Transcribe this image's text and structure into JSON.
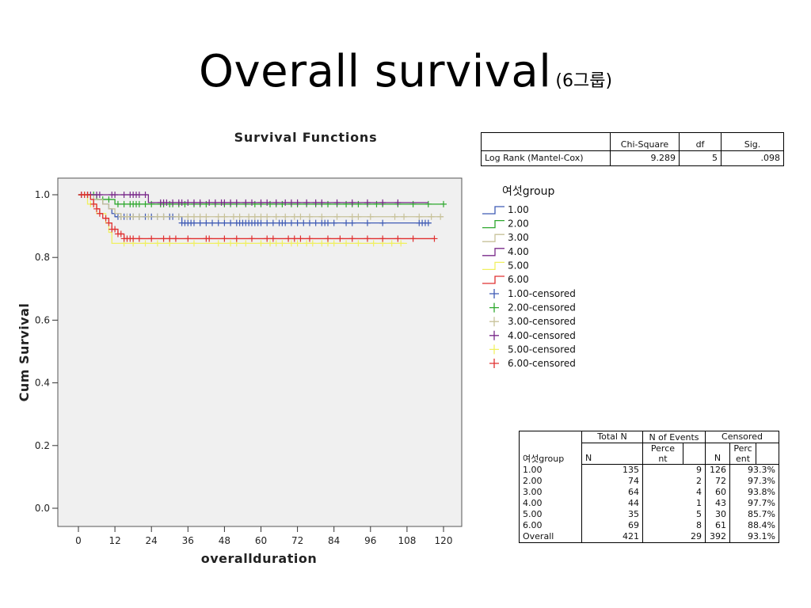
{
  "slide": {
    "title": "Overall survival",
    "subtitle": "(6그룹)"
  },
  "legend": {
    "title": "여섯group",
    "lines": [
      "1.00",
      "2.00",
      "3.00",
      "4.00",
      "5.00",
      "6.00"
    ],
    "censored": [
      "1.00-censored",
      "2.00-censored",
      "3.00-censored",
      "4.00-censored",
      "5.00-censored",
      "6.00-censored"
    ]
  },
  "logrank": {
    "headers": [
      "Chi-Square",
      "df",
      "Sig."
    ],
    "row": {
      "label": "Log Rank (Mantel-Cox)",
      "chi_square": "9.289",
      "df": "5",
      "sig": ".098"
    }
  },
  "case_summary": {
    "group_header": "여섯group",
    "total_n_header": "Total N",
    "n_header": "N",
    "events_header": "N of Events",
    "censored_header": "Censored",
    "censored_n_header": "N",
    "percent_header": "Perc ent",
    "events_percent_header": "Perce nt",
    "rows": [
      {
        "group": "1.00",
        "total": "135",
        "events": "9",
        "censored": "126",
        "percent": "93.3%"
      },
      {
        "group": "2.00",
        "total": "74",
        "events": "2",
        "censored": "72",
        "percent": "97.3%"
      },
      {
        "group": "3.00",
        "total": "64",
        "events": "4",
        "censored": "60",
        "percent": "93.8%"
      },
      {
        "group": "4.00",
        "total": "44",
        "events": "1",
        "censored": "43",
        "percent": "97.7%"
      },
      {
        "group": "5.00",
        "total": "35",
        "events": "5",
        "censored": "30",
        "percent": "85.7%"
      },
      {
        "group": "6.00",
        "total": "69",
        "events": "8",
        "censored": "61",
        "percent": "88.4%"
      },
      {
        "group": "Overall",
        "total": "421",
        "events": "29",
        "censored": "392",
        "percent": "93.1%"
      }
    ]
  },
  "colors": {
    "plot_bg": "#f0f0f0",
    "series": [
      "#3f5bb5",
      "#2ea82e",
      "#c8c29a",
      "#7a2a8a",
      "#f0f060",
      "#e03030"
    ]
  },
  "chart_data": {
    "type": "line",
    "title": "Survival Functions",
    "xlabel": "overallduration",
    "ylabel": "Cum Survival",
    "xlim": [
      -5,
      125
    ],
    "ylim": [
      -0.02,
      1.05
    ],
    "xticks": [
      0,
      12,
      24,
      36,
      48,
      60,
      72,
      84,
      96,
      108,
      120
    ],
    "yticks": [
      0.0,
      0.2,
      0.4,
      0.6,
      0.8,
      1.0
    ],
    "ytick_labels": [
      "0.0",
      "0.2",
      "0.4",
      "0.6",
      "0.8",
      "1.0"
    ],
    "series": [
      {
        "name": "1.00",
        "steps": [
          [
            0,
            1.0
          ],
          [
            5,
            0.985
          ],
          [
            8,
            0.97
          ],
          [
            10,
            0.955
          ],
          [
            11,
            0.94
          ],
          [
            12,
            0.93
          ],
          [
            34,
            0.91
          ],
          [
            116,
            0.91
          ]
        ],
        "censored": [
          13,
          14,
          15,
          16,
          17,
          18,
          20,
          22,
          24,
          26,
          28,
          30,
          31,
          33,
          34,
          35,
          36,
          37,
          38,
          40,
          42,
          44,
          46,
          48,
          50,
          52,
          53,
          54,
          55,
          56,
          57,
          58,
          59,
          60,
          62,
          64,
          66,
          67,
          68,
          70,
          72,
          74,
          76,
          78,
          80,
          81,
          82,
          84,
          88,
          90,
          95,
          100,
          112,
          113,
          114,
          115
        ]
      },
      {
        "name": "2.00",
        "steps": [
          [
            0,
            1.0
          ],
          [
            6,
            0.985
          ],
          [
            12,
            0.97
          ],
          [
            120,
            0.97
          ]
        ],
        "censored": [
          1,
          3,
          5,
          8,
          10,
          13,
          15,
          17,
          18,
          19,
          20,
          22,
          24,
          27,
          28,
          30,
          31,
          33,
          35,
          38,
          40,
          42,
          45,
          48,
          50,
          52,
          55,
          58,
          60,
          63,
          65,
          67,
          70,
          72,
          75,
          78,
          80,
          82,
          85,
          88,
          90,
          92,
          95,
          98,
          100,
          105,
          110,
          115,
          120
        ]
      },
      {
        "name": "3.00",
        "steps": [
          [
            0,
            1.0
          ],
          [
            5,
            0.985
          ],
          [
            8,
            0.97
          ],
          [
            10,
            0.955
          ],
          [
            12,
            0.94
          ],
          [
            14,
            0.93
          ],
          [
            120,
            0.93
          ]
        ],
        "censored": [
          2,
          5,
          14,
          16,
          18,
          20,
          23,
          26,
          28,
          33,
          36,
          38,
          40,
          42,
          46,
          48,
          51,
          53,
          56,
          58,
          60,
          62,
          65,
          68,
          71,
          73,
          76,
          80,
          85,
          90,
          92,
          96,
          104,
          107,
          112,
          116,
          119
        ]
      },
      {
        "name": "4.00",
        "steps": [
          [
            0,
            1.0
          ],
          [
            23,
            0.975
          ],
          [
            115,
            0.975
          ]
        ],
        "censored": [
          1,
          3,
          4,
          6,
          7,
          11,
          12,
          15,
          17,
          18,
          19,
          20,
          22,
          27,
          28,
          29,
          31,
          33,
          34,
          36,
          38,
          40,
          43,
          45,
          47,
          48,
          50,
          52,
          55,
          57,
          60,
          62,
          65,
          68,
          70,
          72,
          75,
          78,
          80,
          85,
          90,
          95,
          100,
          105
        ]
      },
      {
        "name": "5.00",
        "steps": [
          [
            0,
            1.0
          ],
          [
            3,
            0.97
          ],
          [
            6,
            0.94
          ],
          [
            9,
            0.91
          ],
          [
            10,
            0.88
          ],
          [
            11,
            0.845
          ],
          [
            108,
            0.845
          ]
        ],
        "censored": [
          2,
          4,
          5,
          15,
          18,
          22,
          26,
          30,
          38,
          46,
          50,
          52,
          55,
          60,
          63,
          65,
          67,
          70,
          72,
          75,
          77,
          80,
          82,
          84,
          88,
          92,
          97,
          100,
          103,
          106
        ]
      },
      {
        "name": "6.00",
        "steps": [
          [
            0,
            1.0
          ],
          [
            4,
            0.985
          ],
          [
            5,
            0.97
          ],
          [
            6,
            0.955
          ],
          [
            7,
            0.94
          ],
          [
            8,
            0.925
          ],
          [
            10,
            0.91
          ],
          [
            11,
            0.89
          ],
          [
            13,
            0.875
          ],
          [
            15,
            0.86
          ],
          [
            117,
            0.86
          ]
        ],
        "censored": [
          1,
          2,
          3,
          5,
          6,
          7,
          9,
          10,
          11,
          12,
          13,
          14,
          15,
          16,
          17,
          18,
          20,
          24,
          28,
          30,
          32,
          36,
          42,
          43,
          48,
          52,
          57,
          62,
          64,
          69,
          71,
          73,
          76,
          82,
          86,
          90,
          95,
          100,
          105,
          110,
          117
        ]
      }
    ]
  }
}
